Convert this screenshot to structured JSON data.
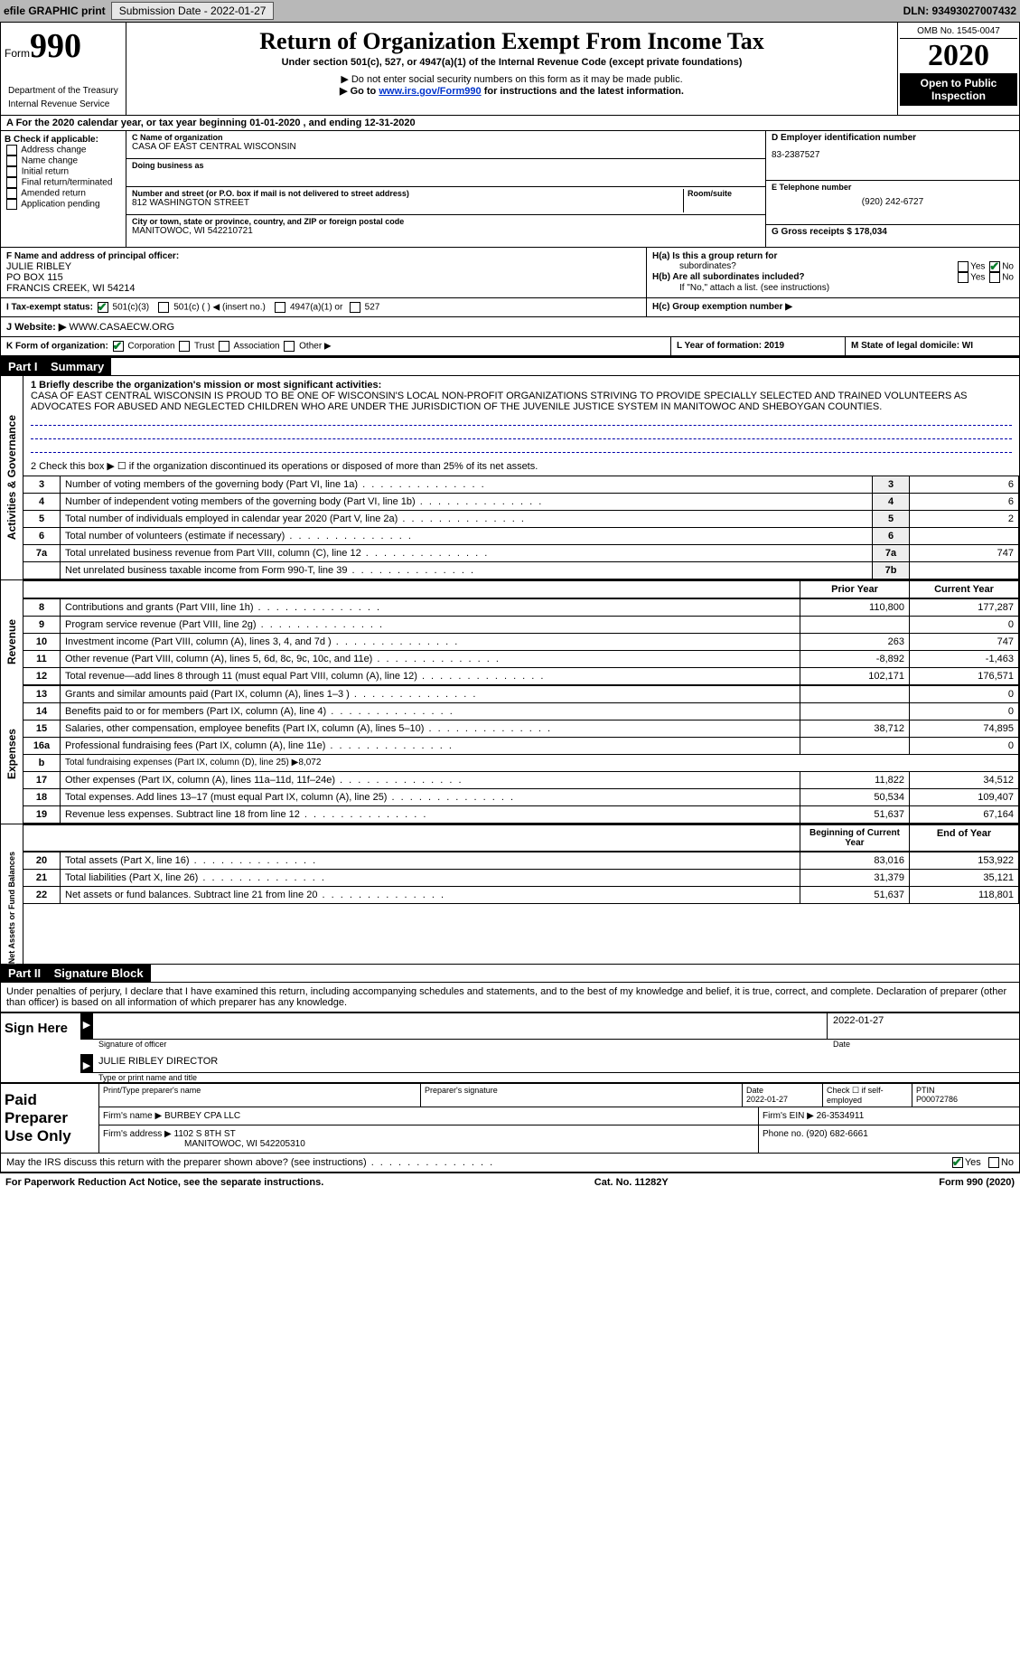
{
  "topbar": {
    "efile": "efile GRAPHIC print",
    "submission_label": "Submission Date - 2022-01-27",
    "dln": "DLN: 93493027007432"
  },
  "header": {
    "form_word": "Form",
    "form_num": "990",
    "dept1": "Department of the Treasury",
    "dept2": "Internal Revenue Service",
    "title": "Return of Organization Exempt From Income Tax",
    "subtitle": "Under section 501(c), 527, or 4947(a)(1) of the Internal Revenue Code (except private foundations)",
    "note1": "▶ Do not enter social security numbers on this form as it may be made public.",
    "note2_pre": "▶ Go to ",
    "note2_link": "www.irs.gov/Form990",
    "note2_post": " for instructions and the latest information.",
    "omb": "OMB No. 1545-0047",
    "year": "2020",
    "public": "Open to Public Inspection"
  },
  "rowA": "A For the 2020 calendar year, or tax year beginning 01-01-2020   , and ending 12-31-2020",
  "B": {
    "title": "B Check if applicable:",
    "opts": [
      "Address change",
      "Name change",
      "Initial return",
      "Final return/terminated",
      "Amended return",
      "Application pending"
    ]
  },
  "C": {
    "label": "C Name of organization",
    "org": "CASA OF EAST CENTRAL WISCONSIN",
    "dba_label": "Doing business as",
    "street_label": "Number and street (or P.O. box if mail is not delivered to street address)",
    "room_label": "Room/suite",
    "street": "812 WASHINGTON STREET",
    "city_label": "City or town, state or province, country, and ZIP or foreign postal code",
    "city": "MANITOWOC, WI  542210721"
  },
  "D": {
    "label": "D Employer identification number",
    "val": "83-2387527"
  },
  "E": {
    "label": "E Telephone number",
    "val": "(920) 242-6727"
  },
  "G": {
    "label": "G Gross receipts $ 178,034"
  },
  "F": {
    "label": "F  Name and address of principal officer:",
    "name": "JULIE RIBLEY",
    "addr1": "PO BOX 115",
    "addr2": "FRANCIS CREEK, WI  54214"
  },
  "H": {
    "a1": "H(a)  Is this a group return for",
    "a2": "subordinates?",
    "b1": "H(b)  Are all subordinates included?",
    "b_note": "If \"No,\" attach a list. (see instructions)",
    "c": "H(c)  Group exemption number ▶",
    "yes": "Yes",
    "no": "No"
  },
  "I": {
    "label": "I   Tax-exempt status:",
    "o1": "501(c)(3)",
    "o2": "501(c) (  ) ◀ (insert no.)",
    "o3": "4947(a)(1) or",
    "o4": "527"
  },
  "J": {
    "label": "J   Website: ▶",
    "val": "WWW.CASAECW.ORG"
  },
  "K": {
    "label": "K Form of organization:",
    "o1": "Corporation",
    "o2": "Trust",
    "o3": "Association",
    "o4": "Other ▶"
  },
  "L": {
    "label": "L Year of formation: 2019"
  },
  "M": {
    "label": "M State of legal domicile: WI"
  },
  "part1": {
    "title_key": "Part I",
    "title": "Summary",
    "line1_label": "1  Briefly describe the organization's mission or most significant activities:",
    "mission": "CASA OF EAST CENTRAL WISCONSIN IS PROUD TO BE ONE OF WISCONSIN'S LOCAL NON-PROFIT ORGANIZATIONS STRIVING TO PROVIDE SPECIALLY SELECTED AND TRAINED VOLUNTEERS AS ADVOCATES FOR ABUSED AND NEGLECTED CHILDREN WHO ARE UNDER THE JURISDICTION OF THE JUVENILE JUSTICE SYSTEM IN MANITOWOC AND SHEBOYGAN COUNTIES.",
    "line2": "2   Check this box ▶ ☐ if the organization discontinued its operations or disposed of more than 25% of its net assets.",
    "rows_ag": [
      {
        "n": "3",
        "t": "Number of voting members of the governing body (Part VI, line 1a)",
        "box": "3",
        "v": "6"
      },
      {
        "n": "4",
        "t": "Number of independent voting members of the governing body (Part VI, line 1b)",
        "box": "4",
        "v": "6"
      },
      {
        "n": "5",
        "t": "Total number of individuals employed in calendar year 2020 (Part V, line 2a)",
        "box": "5",
        "v": "2"
      },
      {
        "n": "6",
        "t": "Total number of volunteers (estimate if necessary)",
        "box": "6",
        "v": ""
      },
      {
        "n": "7a",
        "t": "Total unrelated business revenue from Part VIII, column (C), line 12",
        "box": "7a",
        "v": "747"
      },
      {
        "n": "",
        "t": "Net unrelated business taxable income from Form 990-T, line 39",
        "box": "7b",
        "v": ""
      }
    ],
    "hdr_prior": "Prior Year",
    "hdr_curr": "Current Year",
    "rows_rev": [
      {
        "n": "8",
        "t": "Contributions and grants (Part VIII, line 1h)",
        "p": "110,800",
        "c": "177,287"
      },
      {
        "n": "9",
        "t": "Program service revenue (Part VIII, line 2g)",
        "p": "",
        "c": "0"
      },
      {
        "n": "10",
        "t": "Investment income (Part VIII, column (A), lines 3, 4, and 7d )",
        "p": "263",
        "c": "747"
      },
      {
        "n": "11",
        "t": "Other revenue (Part VIII, column (A), lines 5, 6d, 8c, 9c, 10c, and 11e)",
        "p": "-8,892",
        "c": "-1,463"
      },
      {
        "n": "12",
        "t": "Total revenue—add lines 8 through 11 (must equal Part VIII, column (A), line 12)",
        "p": "102,171",
        "c": "176,571"
      }
    ],
    "rows_exp": [
      {
        "n": "13",
        "t": "Grants and similar amounts paid (Part IX, column (A), lines 1–3 )",
        "p": "",
        "c": "0"
      },
      {
        "n": "14",
        "t": "Benefits paid to or for members (Part IX, column (A), line 4)",
        "p": "",
        "c": "0"
      },
      {
        "n": "15",
        "t": "Salaries, other compensation, employee benefits (Part IX, column (A), lines 5–10)",
        "p": "38,712",
        "c": "74,895"
      },
      {
        "n": "16a",
        "t": "Professional fundraising fees (Part IX, column (A), line 11e)",
        "p": "",
        "c": "0"
      },
      {
        "n": "b",
        "t": "Total fundraising expenses (Part IX, column (D), line 25) ▶8,072",
        "p": "—",
        "c": "—"
      },
      {
        "n": "17",
        "t": "Other expenses (Part IX, column (A), lines 11a–11d, 11f–24e)",
        "p": "11,822",
        "c": "34,512"
      },
      {
        "n": "18",
        "t": "Total expenses. Add lines 13–17 (must equal Part IX, column (A), line 25)",
        "p": "50,534",
        "c": "109,407"
      },
      {
        "n": "19",
        "t": "Revenue less expenses. Subtract line 18 from line 12",
        "p": "51,637",
        "c": "67,164"
      }
    ],
    "hdr_begin": "Beginning of Current Year",
    "hdr_end": "End of Year",
    "rows_net": [
      {
        "n": "20",
        "t": "Total assets (Part X, line 16)",
        "p": "83,016",
        "c": "153,922"
      },
      {
        "n": "21",
        "t": "Total liabilities (Part X, line 26)",
        "p": "31,379",
        "c": "35,121"
      },
      {
        "n": "22",
        "t": "Net assets or fund balances. Subtract line 21 from line 20",
        "p": "51,637",
        "c": "118,801"
      }
    ],
    "section_labels": {
      "ag": "Activities & Governance",
      "rev": "Revenue",
      "exp": "Expenses",
      "net": "Net Assets or Fund Balances"
    }
  },
  "part2": {
    "title_key": "Part II",
    "title": "Signature Block",
    "decl": "Under penalties of perjury, I declare that I have examined this return, including accompanying schedules and statements, and to the best of my knowledge and belief, it is true, correct, and complete. Declaration of preparer (other than officer) is based on all information of which preparer has any knowledge."
  },
  "sign": {
    "label": "Sign Here",
    "sig_officer": "Signature of officer",
    "date": "Date",
    "date_val": "2022-01-27",
    "name": "JULIE RIBLEY DIRECTOR",
    "name_label": "Type or print name and title"
  },
  "paid": {
    "label": "Paid Preparer Use Only",
    "c1": "Print/Type preparer's name",
    "c2": "Preparer's signature",
    "c3": "Date",
    "c3v": "2022-01-27",
    "c4": "Check ☐ if self-employed",
    "c5": "PTIN",
    "c5v": "P00072786",
    "firm_name_l": "Firm's name    ▶",
    "firm_name": "BURBEY CPA LLC",
    "firm_ein_l": "Firm's EIN ▶",
    "firm_ein": "26-3534911",
    "firm_addr_l": "Firm's address ▶",
    "firm_addr1": "1102 S 8TH ST",
    "firm_addr2": "MANITOWOC, WI  542205310",
    "phone_l": "Phone no.",
    "phone": "(920) 682-6661"
  },
  "discuss": "May the IRS discuss this return with the preparer shown above? (see instructions)",
  "footer": {
    "l": "For Paperwork Reduction Act Notice, see the separate instructions.",
    "m": "Cat. No. 11282Y",
    "r": "Form 990 (2020)"
  }
}
